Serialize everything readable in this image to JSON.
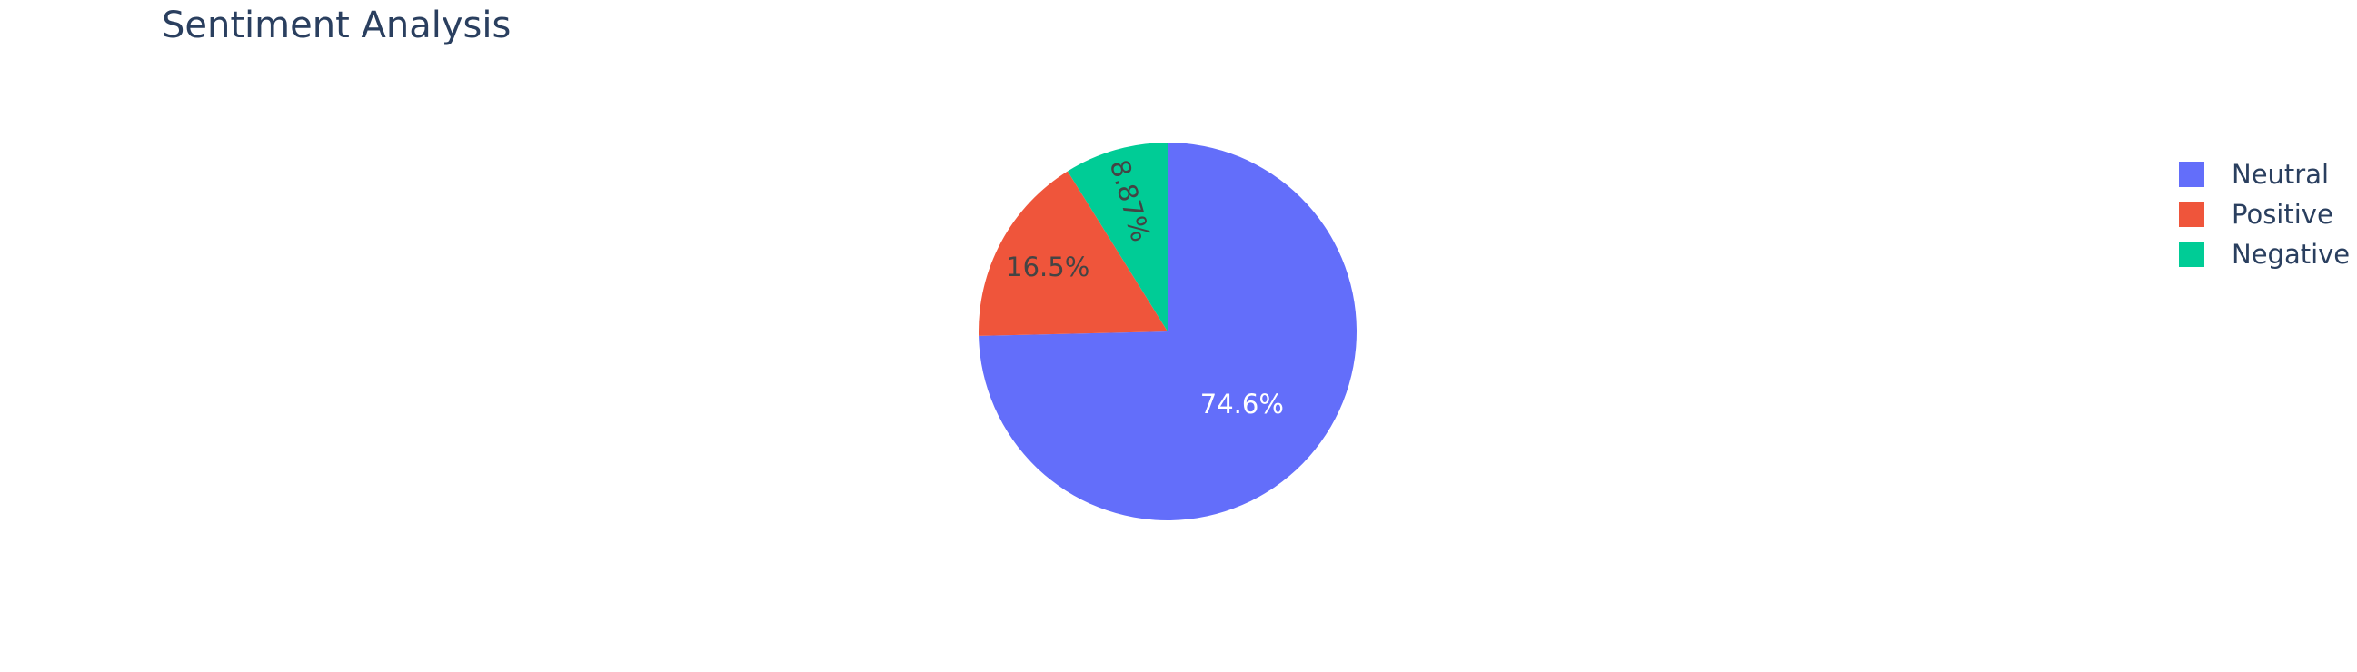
{
  "chart_data": {
    "type": "pie",
    "title": "Sentiment Analysis",
    "categories": [
      "Neutral",
      "Positive",
      "Negative"
    ],
    "values": [
      74.6,
      16.5,
      8.87
    ],
    "slice_labels": [
      "74.6%",
      "16.5%",
      "8.87%"
    ],
    "colors": [
      "#636efa",
      "#ef553b",
      "#00cc96"
    ],
    "direction": "counterclockwise",
    "start_angle_deg": 90,
    "legend": {
      "position": "top-right",
      "entries": [
        "Neutral",
        "Positive",
        "Negative"
      ]
    }
  }
}
